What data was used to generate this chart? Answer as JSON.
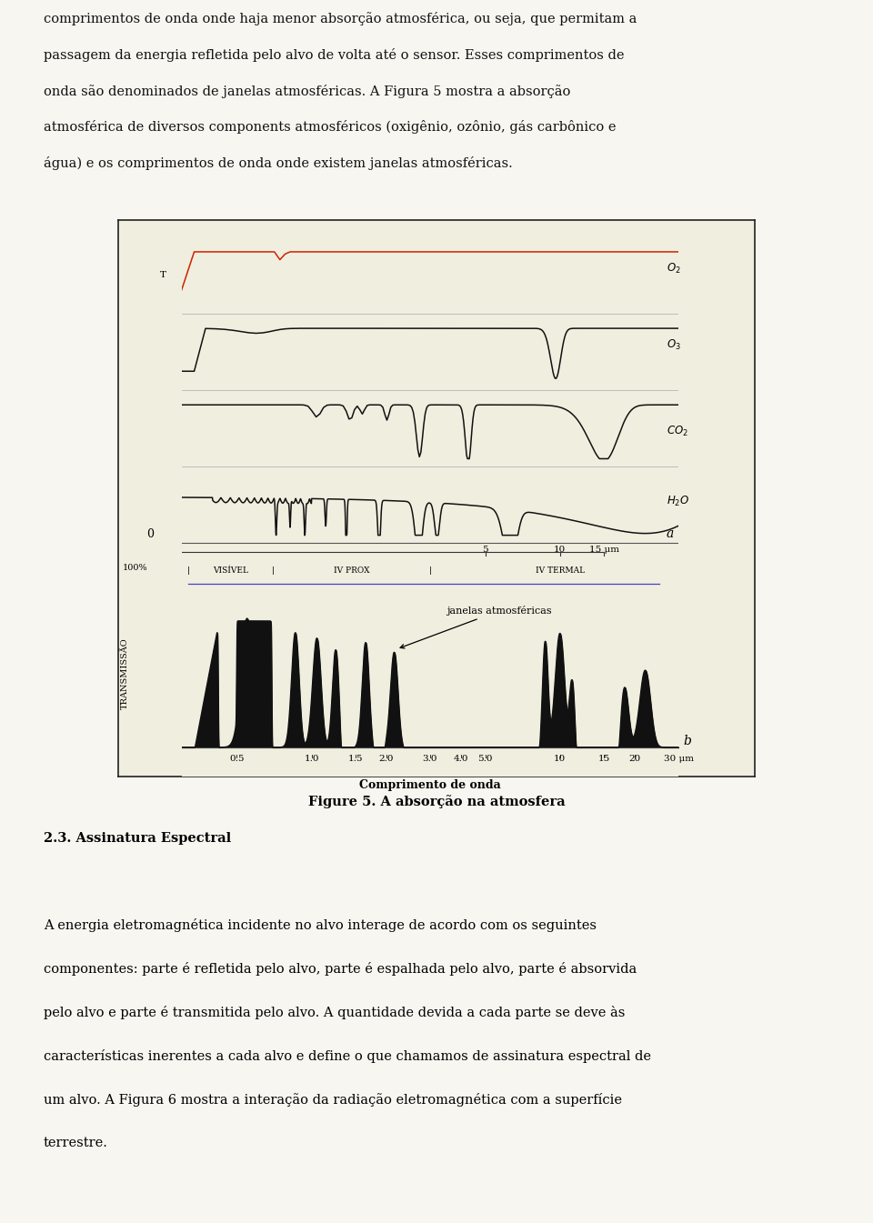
{
  "page_bg": "#f7f6f0",
  "figure_bg": "#f0eedf",
  "border_color": "#222222",
  "line_color": "#111111",
  "red_line_color": "#cc2200",
  "title_text": "Figure 5. A absorção na atmosfera",
  "top_text": "comprimentos de onda onde haja menor absorção atmosférica, ou seja, que permitam a passagem da energia refletida pelo alvo de volta até o sensor. Esses comprimentos de onda são denominados de janelas atmosféricas. A Figura 5 mostra a absorção atmosférica de diversos components atmosféricos (oxigênio, ozônio, gás carbônico e água) e os comprimentos de onda onde existem janelas atmosféricas.",
  "bottom_section_header": "2.3. Assinatura Espectral",
  "bottom_text": "A energia eletromagnética incidente no alvo interage de acordo com os seguintes componentes: parte é refletida pelo alvo, parte é espalhada pelo alvo, parte é absorvida pelo alvo e parte é transmitida pelo alvo. A quantidade devida a cada parte se deve às características inerentes a cada alvo e define o que chamamos de assinatura espectral de um alvo. A Figura 6 mostra a interação da radiação eletromagnética com a superfície terrestre.",
  "janelas_text": "janelas atmosféricas",
  "xlabel": "Comprimento de onda",
  "ylabel": "TRANSMISSÃO",
  "wavelength_ticks": [
    0.5,
    1.0,
    1.5,
    2.0,
    3.0,
    4.0,
    5.0,
    10,
    15,
    20,
    30
  ],
  "wavelength_labels": [
    "0.5",
    "1.0",
    "1.5",
    "2.0",
    "3.0",
    "4.0",
    "5.0",
    "10",
    "15",
    "20",
    "30 μm"
  ]
}
